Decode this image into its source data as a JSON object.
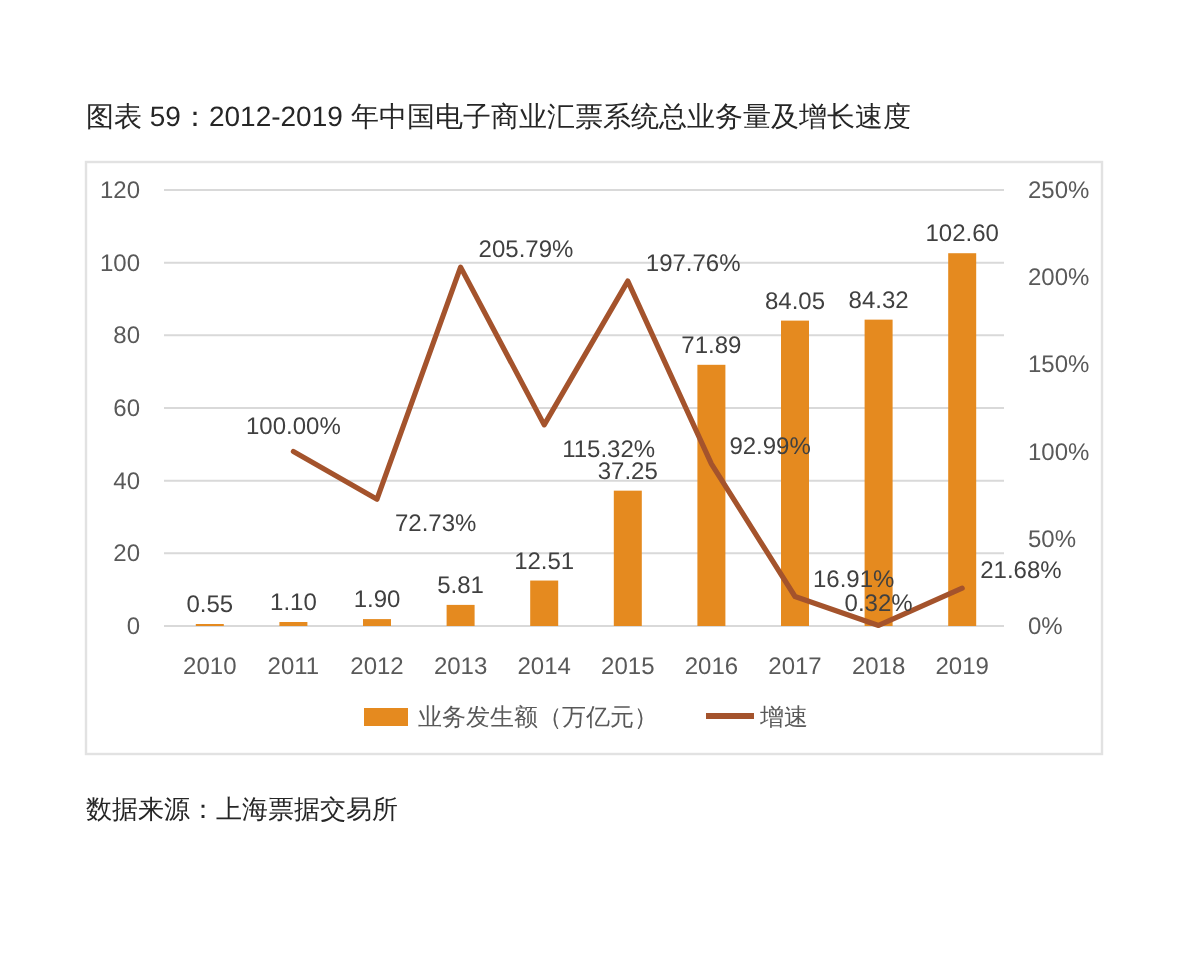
{
  "chart_data": {
    "type": "bar",
    "title": "图表 59：2012-2019 年中国电子商业汇票系统总业务量及增长速度",
    "categories": [
      "2010",
      "2011",
      "2012",
      "2013",
      "2014",
      "2015",
      "2016",
      "2017",
      "2018",
      "2019"
    ],
    "series": [
      {
        "name": "业务发生额（万亿元）",
        "color": "#e58a1f",
        "values": [
          0.55,
          1.1,
          1.9,
          5.81,
          12.51,
          37.25,
          71.89,
          84.05,
          84.32,
          102.6
        ],
        "value_labels": [
          "0.55",
          "1.10",
          "1.90",
          "5.81",
          "12.51",
          "37.25",
          "71.89",
          "84.05",
          "84.32",
          "102.60"
        ]
      },
      {
        "name": "增速",
        "type": "line",
        "axis": "y2",
        "color": "#a4532c",
        "values": [
          null,
          100.0,
          72.73,
          205.79,
          115.32,
          197.76,
          92.99,
          16.91,
          0.32,
          21.68
        ],
        "value_labels": [
          null,
          "100.00%",
          "72.73%",
          "205.79%",
          "115.32%",
          "197.76%",
          "92.99%",
          "16.91%",
          "0.32%",
          "21.68%"
        ]
      }
    ],
    "ylim": [
      0,
      120
    ],
    "yticks": [
      0,
      20,
      40,
      60,
      80,
      100,
      120
    ],
    "y2lim": [
      0,
      250
    ],
    "y2ticks": [
      {
        "value": 0,
        "label": "0%"
      },
      {
        "value": 50,
        "label": "50%"
      },
      {
        "value": 100,
        "label": "100%"
      },
      {
        "value": 150,
        "label": "150%"
      },
      {
        "value": 200,
        "label": "200%"
      },
      {
        "value": 250,
        "label": "250%"
      }
    ],
    "grid": "y",
    "legend": "bottom",
    "annotations": [
      "数据来源：上海票据交易所"
    ]
  }
}
